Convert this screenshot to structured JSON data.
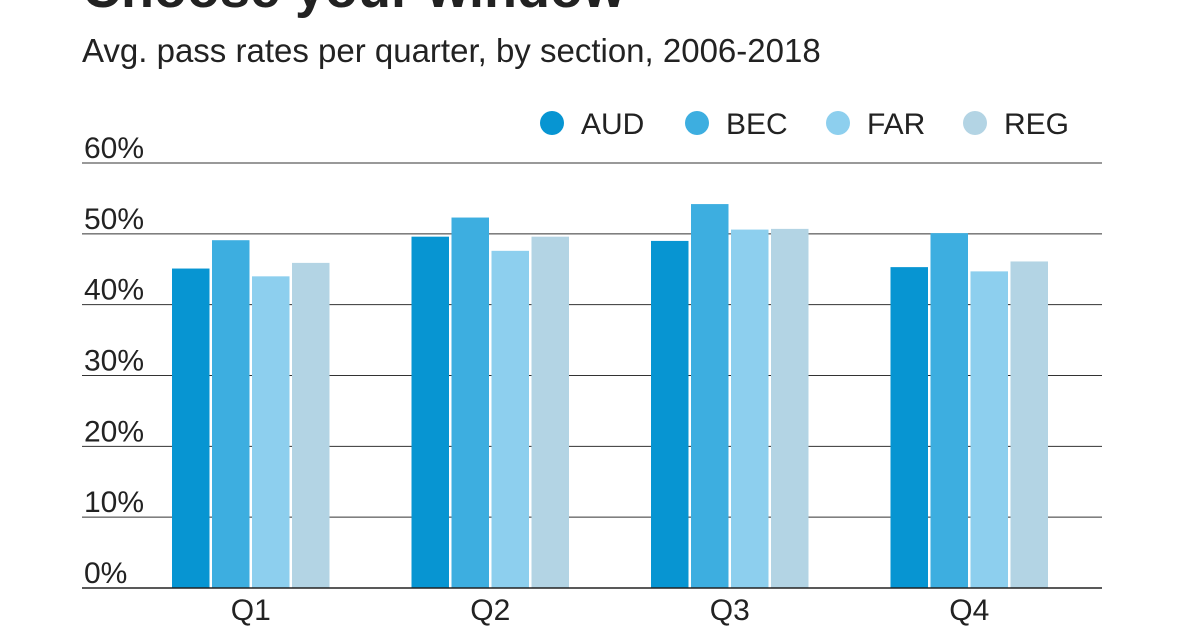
{
  "chart_data": {
    "type": "bar",
    "title": "Choose your window",
    "subtitle": "Avg. pass rates per quarter, by section, 2006-2018",
    "categories": [
      "Q1",
      "Q2",
      "Q3",
      "Q4"
    ],
    "series": [
      {
        "name": "AUD",
        "color": "#0795d2",
        "values": [
          45.1,
          49.6,
          49.0,
          45.3
        ]
      },
      {
        "name": "BEC",
        "color": "#3daee0",
        "values": [
          49.1,
          52.3,
          54.2,
          50.1
        ]
      },
      {
        "name": "FAR",
        "color": "#8dcfee",
        "values": [
          44.0,
          47.6,
          50.6,
          44.7
        ]
      },
      {
        "name": "REG",
        "color": "#b3d4e4",
        "values": [
          45.9,
          49.6,
          50.7,
          46.1
        ]
      }
    ],
    "yticks": [
      0,
      10,
      20,
      30,
      40,
      50,
      60
    ],
    "ytick_labels": [
      "0%",
      "10%",
      "20%",
      "30%",
      "40%",
      "50%",
      "60%"
    ],
    "ylim": [
      0,
      60
    ],
    "xlabel": "",
    "ylabel": "",
    "grid": true,
    "legend_position": "top-right"
  }
}
